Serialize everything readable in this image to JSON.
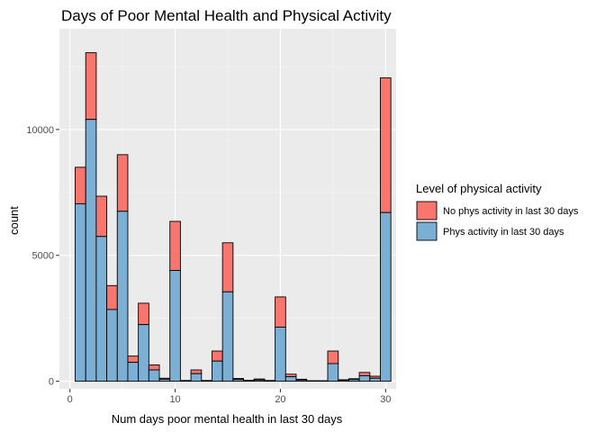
{
  "chart_data": {
    "type": "bar",
    "stacked": true,
    "title": "Days of Poor Mental Health and Physical Activity",
    "xlabel": "Num days poor mental health in last 30 days",
    "ylabel": "count",
    "xlim": [
      -1,
      31
    ],
    "ylim": [
      -300,
      14000
    ],
    "x_ticks": [
      0,
      10,
      20,
      30
    ],
    "x_tick_labels": [
      "0",
      "10",
      "20",
      "30"
    ],
    "y_ticks": [
      0,
      5000,
      10000
    ],
    "y_tick_labels": [
      "0",
      "5000",
      "10000"
    ],
    "grid": true,
    "legend": {
      "title": "Level of physical activity",
      "position": "right",
      "entries": [
        "No phys activity in last 30 days",
        "Phys activity in last 30 days"
      ]
    },
    "x": [
      1,
      2,
      3,
      4,
      5,
      6,
      7,
      8,
      9,
      10,
      11,
      12,
      13,
      14,
      15,
      16,
      17,
      18,
      19,
      20,
      21,
      22,
      23,
      24,
      25,
      26,
      27,
      28,
      29,
      30
    ],
    "series": [
      {
        "name": "Phys activity in last 30 days",
        "color": "#7bafd4",
        "values": [
          7050,
          10400,
          5750,
          2850,
          6750,
          750,
          2250,
          450,
          80,
          4400,
          20,
          300,
          20,
          800,
          3550,
          70,
          30,
          50,
          20,
          2150,
          180,
          50,
          10,
          10,
          700,
          40,
          70,
          220,
          120,
          6700
        ]
      },
      {
        "name": "No phys activity in last 30 days",
        "color": "#f8766d",
        "values": [
          1450,
          2650,
          1600,
          950,
          2250,
          250,
          850,
          200,
          40,
          1950,
          10,
          150,
          10,
          400,
          1950,
          40,
          10,
          40,
          10,
          1200,
          100,
          30,
          10,
          10,
          500,
          20,
          30,
          130,
          80,
          5350
        ]
      }
    ]
  },
  "colors": {
    "panel_bg": "#ebebeb",
    "grid_major": "#ffffff",
    "bar_outline": "#000000"
  }
}
